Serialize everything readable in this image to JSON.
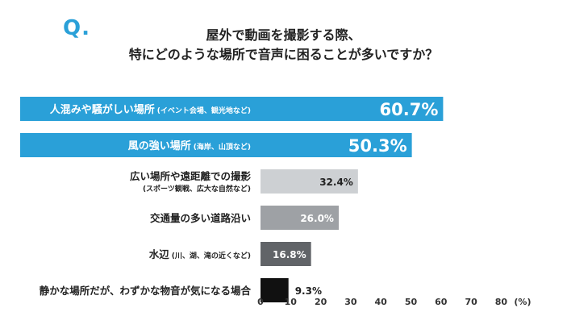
{
  "question_mark": "Q.",
  "title_line1": "屋外で動画を撮影する際、",
  "title_line2": "特にどのような場所で音声に困ることが多いですか？",
  "colors": {
    "accent": "#2aa0d8",
    "bar_light": "#cdd0d3",
    "bar_mid": "#9ea1a5",
    "bar_dark": "#616468",
    "bar_black": "#111111"
  },
  "chart_data": {
    "type": "bar",
    "orientation": "horizontal",
    "xlabel": "(%)",
    "xlim": [
      0,
      80
    ],
    "xticks": [
      0,
      10,
      20,
      30,
      40,
      50,
      60,
      70,
      80
    ],
    "categories": [
      {
        "label": "人混みや騒がしい場所",
        "sub": "(イベント会場、観光地など)",
        "value": 60.7,
        "value_label": "60.7%",
        "style": "highlight",
        "color": "#2aa0d8"
      },
      {
        "label": "風の強い場所",
        "sub": "(海岸、山頂など)",
        "value": 50.3,
        "value_label": "50.3%",
        "style": "highlight",
        "color": "#2aa0d8"
      },
      {
        "label": "広い場所や遠距離での撮影",
        "sub": "(スポーツ観戦、広大な自然など)",
        "value": 32.4,
        "value_label": "32.4%",
        "style": "two-line",
        "color": "#cdd0d3"
      },
      {
        "label": "交通量の多い道路沿い",
        "sub": "",
        "value": 26.0,
        "value_label": "26.0%",
        "style": "plain",
        "color": "#9ea1a5"
      },
      {
        "label": "水辺",
        "sub": "(川、湖、滝の近くなど)",
        "value": 16.8,
        "value_label": "16.8%",
        "style": "plain",
        "color": "#616468"
      },
      {
        "label": "静かな場所だが、わずかな物音が気になる場合",
        "sub": "",
        "value": 9.3,
        "value_label": "9.3%",
        "style": "plain",
        "color": "#111111"
      }
    ]
  }
}
